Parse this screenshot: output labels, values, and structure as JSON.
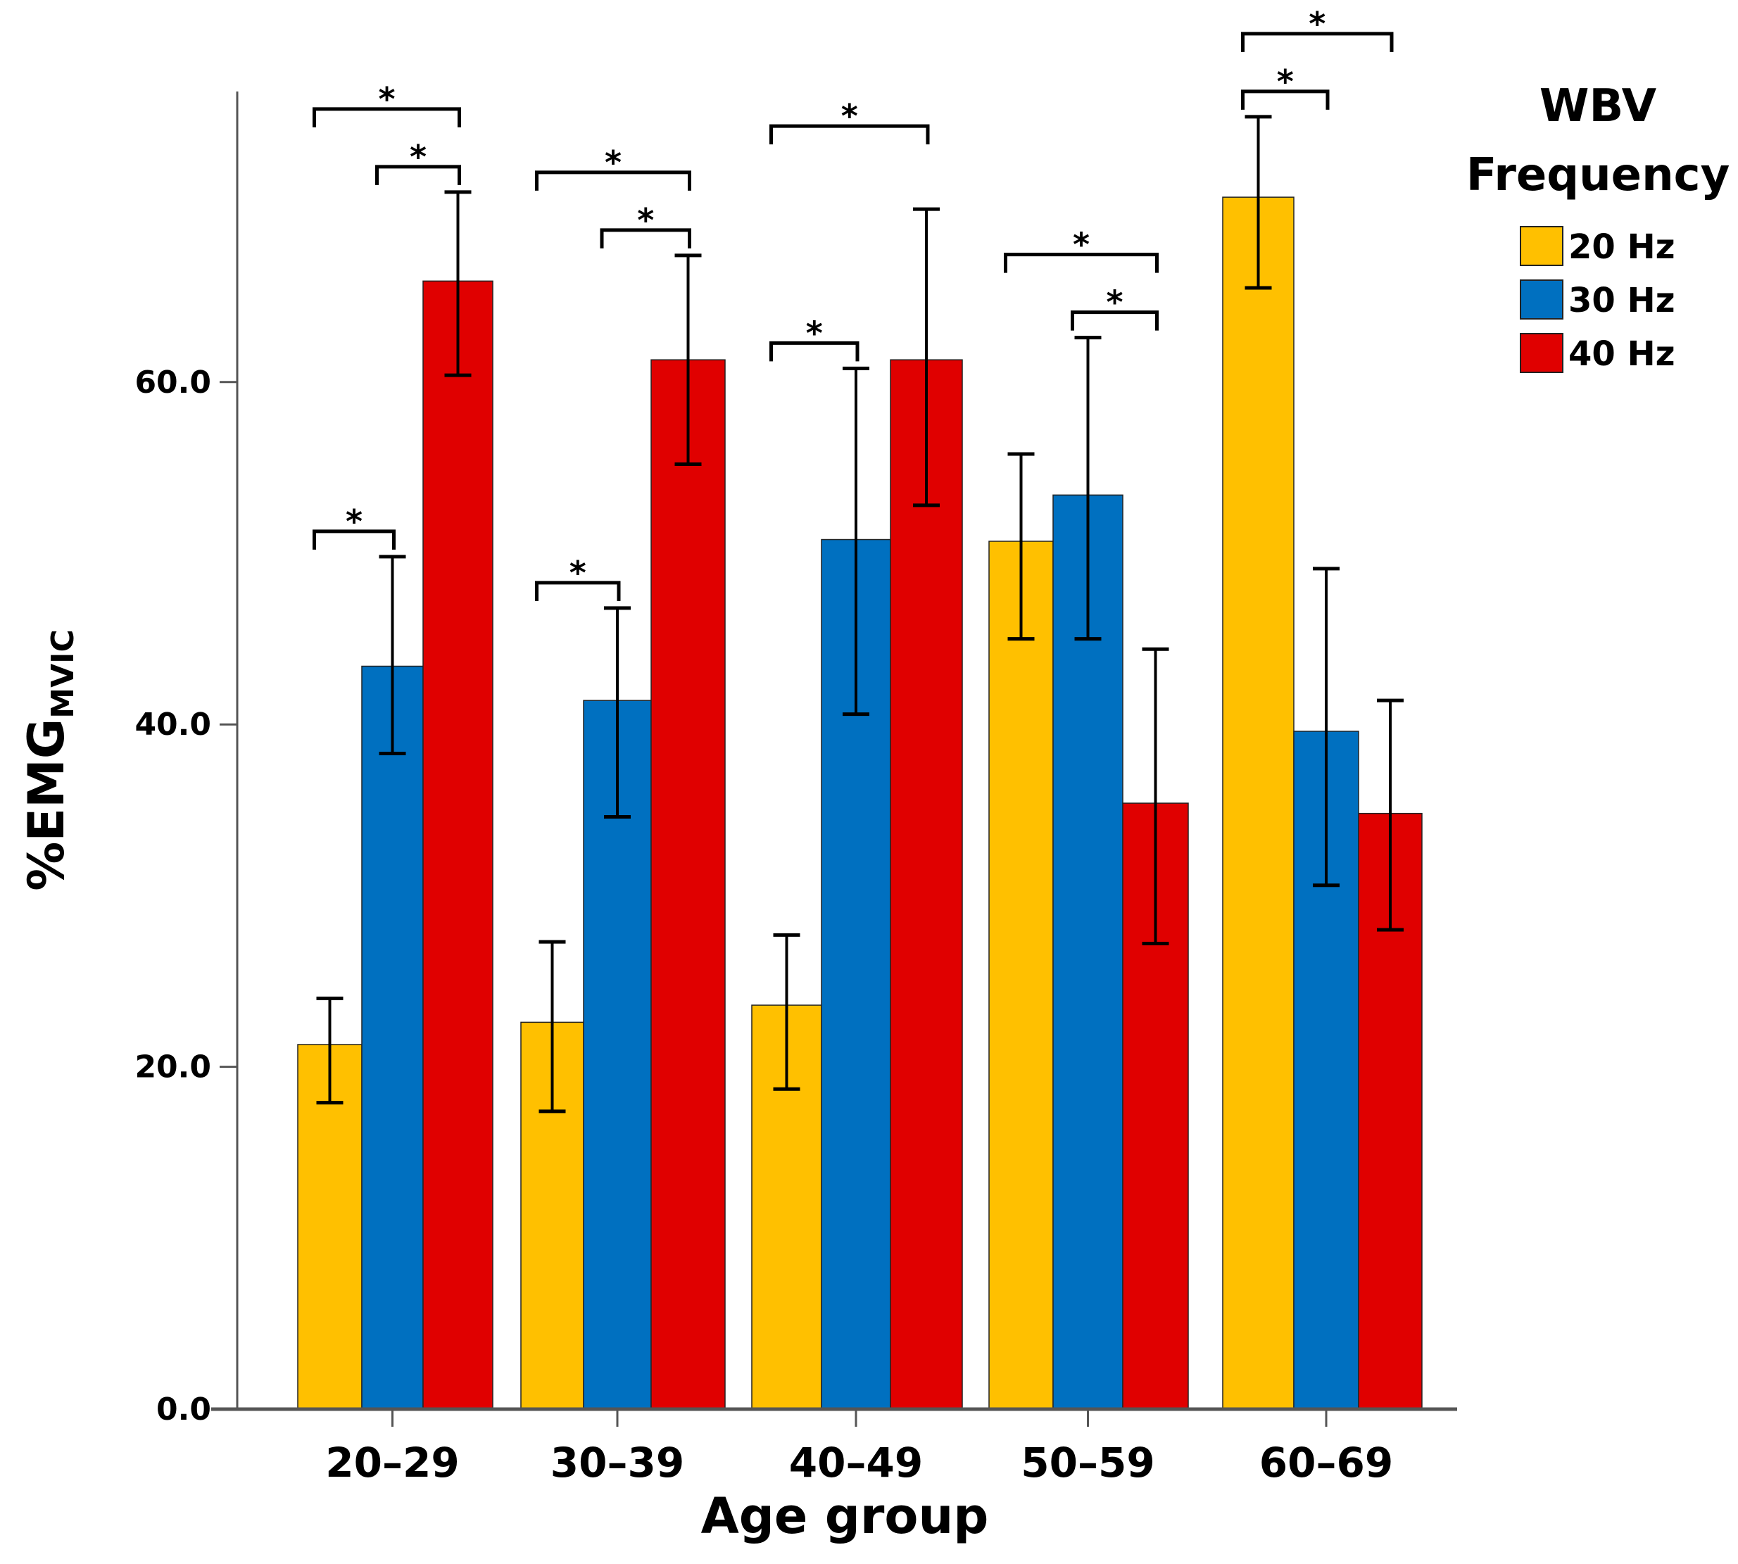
{
  "chart_data": {
    "type": "bar",
    "categories": [
      "20–29",
      "30–39",
      "40–49",
      "50–59",
      "60–69"
    ],
    "xlabel": "Age group",
    "ylabel": "%EMG",
    "ylabel_subscript": "MVIC",
    "ylim": [
      0,
      76
    ],
    "yticks": [
      {
        "value": 0,
        "label": "0.0"
      },
      {
        "value": 20,
        "label": "20.0"
      },
      {
        "value": 40,
        "label": "40.0"
      },
      {
        "value": 60,
        "label": "60.0"
      }
    ],
    "grid": false,
    "legend": {
      "title_line1": "WBV",
      "title_line2": "Frequency",
      "placement": "top-right"
    },
    "series": [
      {
        "name": "20 Hz",
        "color": "#FFC000",
        "values": [
          21.3,
          22.6,
          23.6,
          50.7,
          70.8
        ],
        "err_low": [
          17.9,
          17.4,
          18.7,
          45.0,
          65.5
        ],
        "err_high": [
          24.0,
          27.3,
          27.7,
          55.8,
          75.5
        ]
      },
      {
        "name": "30 Hz",
        "color": "#0070C0",
        "values": [
          43.4,
          41.4,
          50.8,
          53.4,
          39.6
        ],
        "err_low": [
          38.3,
          34.6,
          40.6,
          45.0,
          30.6
        ],
        "err_high": [
          49.8,
          46.8,
          60.8,
          62.6,
          49.1
        ]
      },
      {
        "name": "40 Hz",
        "color": "#E00000",
        "values": [
          65.9,
          61.3,
          61.3,
          35.4,
          34.8
        ],
        "err_low": [
          60.4,
          55.2,
          52.8,
          27.2,
          28.0
        ],
        "err_high": [
          71.1,
          67.4,
          70.1,
          44.4,
          41.4
        ]
      }
    ],
    "significance": [
      {
        "group": 0,
        "from": 0,
        "to": 2,
        "label": "*"
      },
      {
        "group": 0,
        "from": 1,
        "to": 2,
        "label": "*"
      },
      {
        "group": 0,
        "from": 0,
        "to": 1,
        "label": "*"
      },
      {
        "group": 1,
        "from": 0,
        "to": 2,
        "label": "*"
      },
      {
        "group": 1,
        "from": 1,
        "to": 2,
        "label": "*"
      },
      {
        "group": 1,
        "from": 0,
        "to": 1,
        "label": "*"
      },
      {
        "group": 2,
        "from": 0,
        "to": 2,
        "label": "*"
      },
      {
        "group": 2,
        "from": 0,
        "to": 1,
        "label": "*"
      },
      {
        "group": 3,
        "from": 0,
        "to": 2,
        "label": "*"
      },
      {
        "group": 3,
        "from": 1,
        "to": 2,
        "label": "*"
      },
      {
        "group": 4,
        "from": 0,
        "to": 2,
        "label": "*"
      },
      {
        "group": 4,
        "from": 0,
        "to": 1,
        "label": "*"
      }
    ]
  }
}
